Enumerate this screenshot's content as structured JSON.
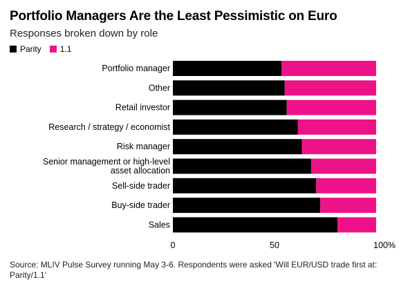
{
  "title": "Portfolio Managers Are the Least Pessimistic on Euro",
  "subtitle": "Responses broken down by role",
  "source": "Source: MLIV Pulse Survey running May 3-6. Respondents were asked 'Will EUR/USD trade first at: Parity/1.1'",
  "colors": {
    "parity": "#000000",
    "one_one": "#ee1289"
  },
  "chart_data": {
    "type": "bar",
    "orientation": "horizontal",
    "stacked": true,
    "categories": [
      "Portfolio manager",
      "Other",
      "Retail investor",
      "Research / strategy / economist",
      "Risk manager",
      "Senior management or high-level asset allocation",
      "Sell-side trader",
      "Buy-side trader",
      "Sales"
    ],
    "series": [
      {
        "name": "Parity",
        "values": [
          53.5,
          55,
          56,
          61.5,
          63.5,
          68,
          70.5,
          72.5,
          81
        ]
      },
      {
        "name": "1.1",
        "values": [
          46.5,
          45,
          44,
          38.5,
          36.5,
          32,
          29.5,
          27.5,
          19
        ]
      }
    ],
    "xlim": [
      0,
      100
    ],
    "xticks": [
      "0",
      "50",
      "100%"
    ],
    "legend": "top-left",
    "grid": false
  }
}
